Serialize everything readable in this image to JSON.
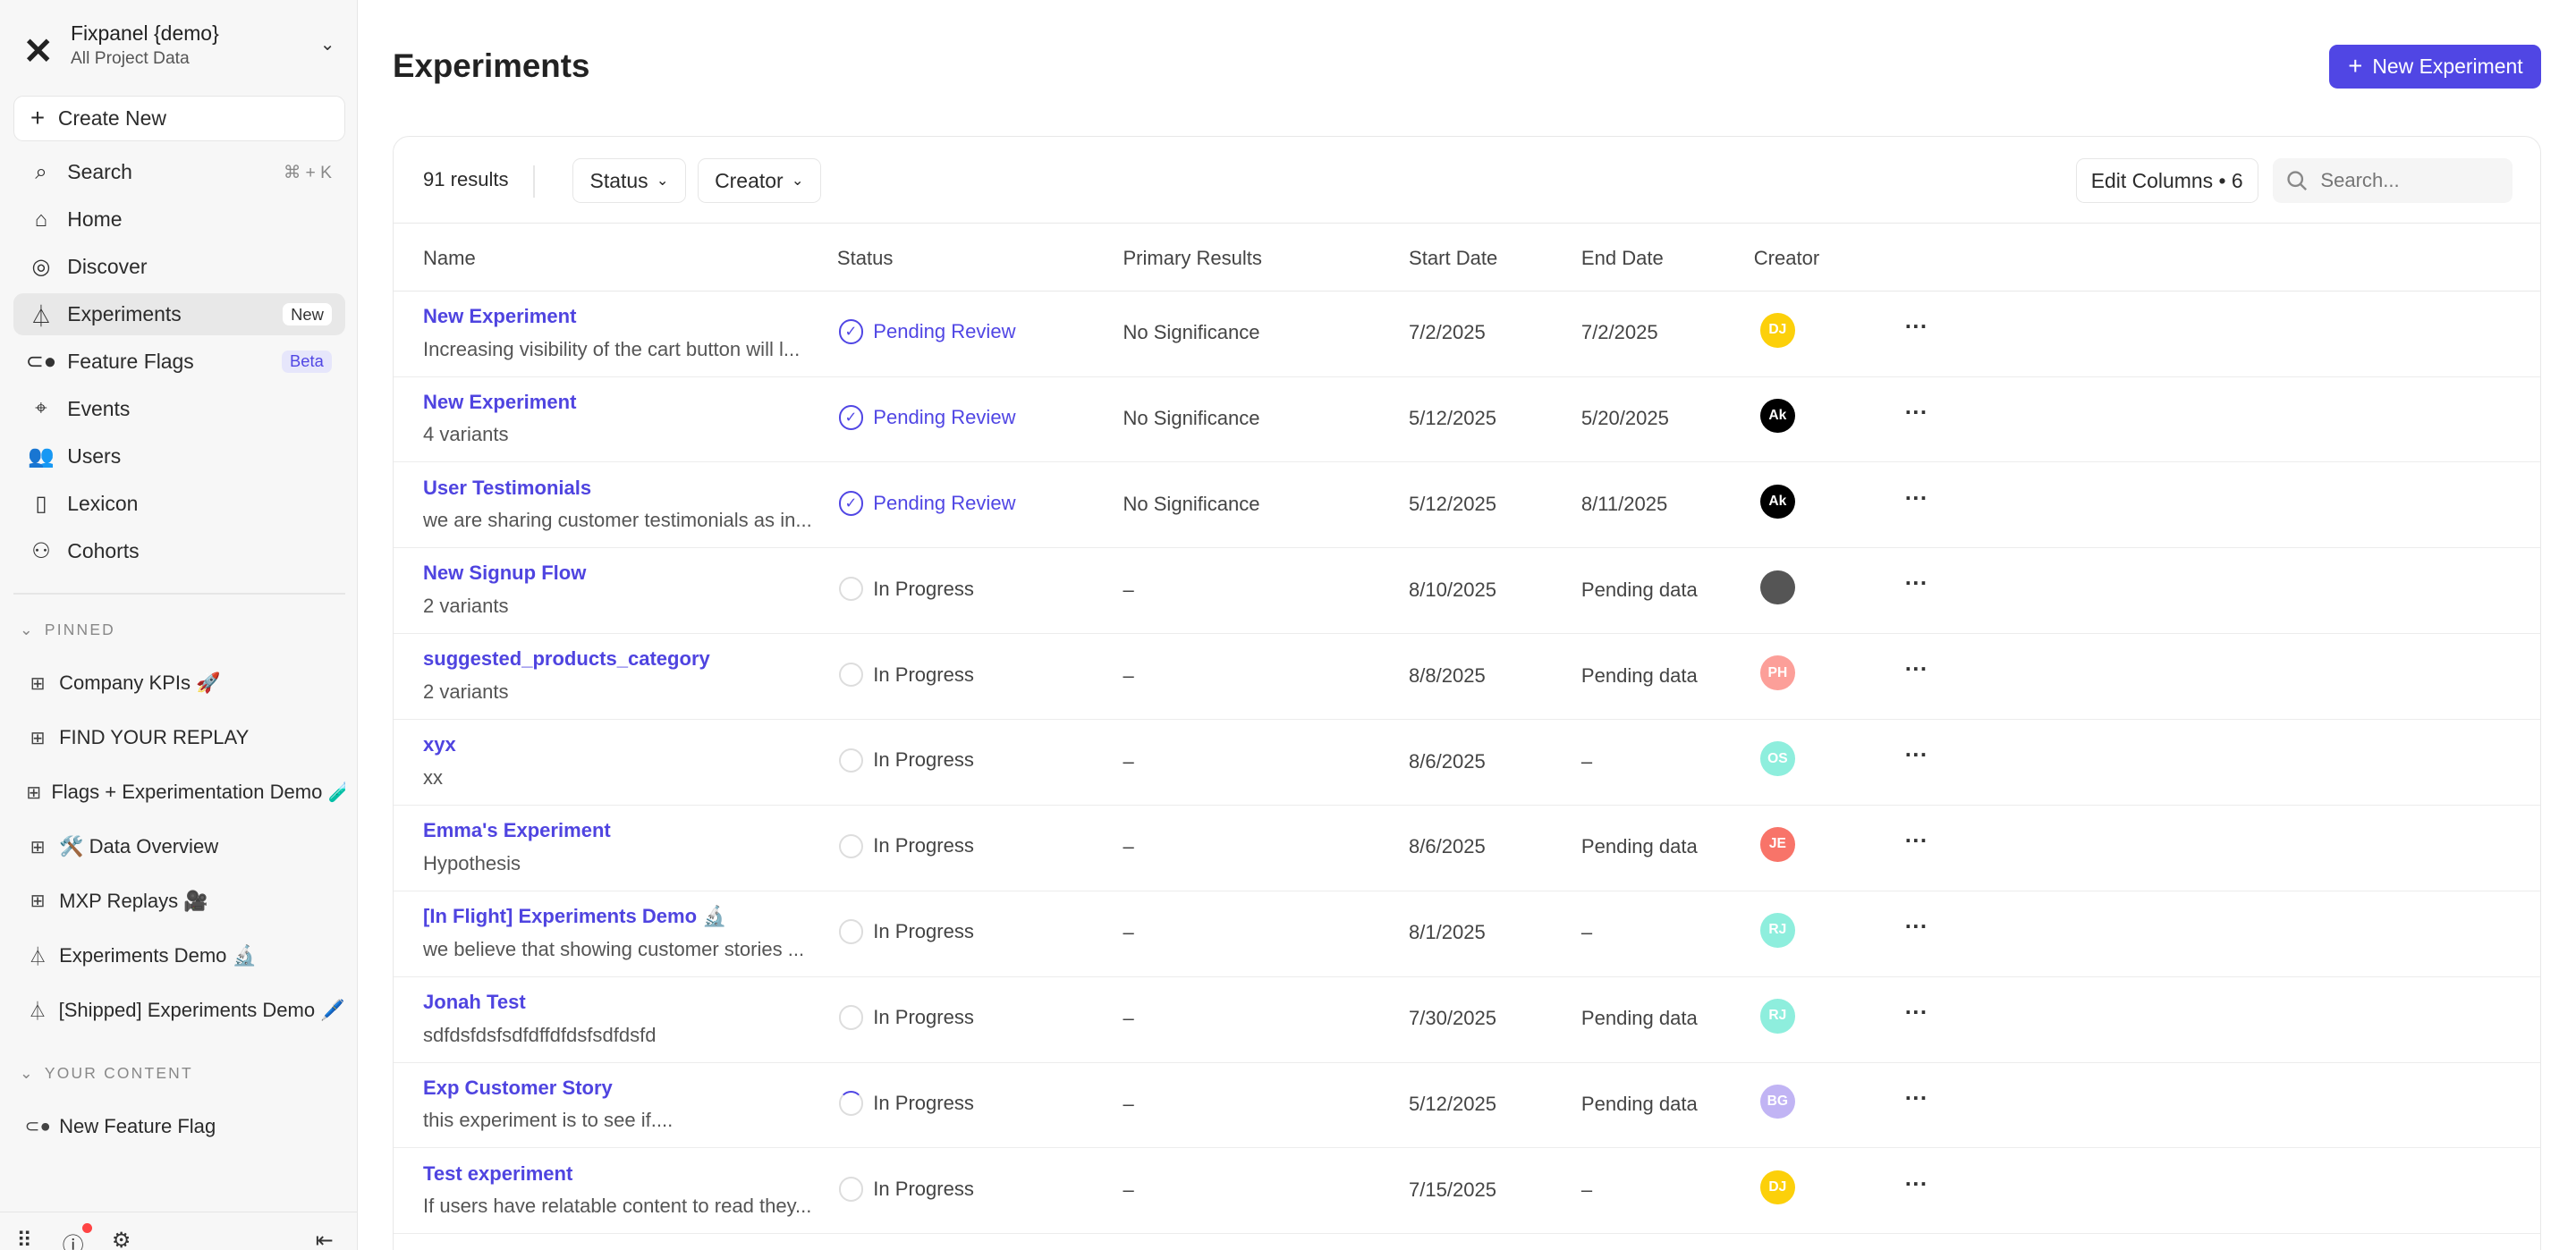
{
  "project": {
    "name": "Fixpanel {demo}",
    "subtitle": "All Project Data"
  },
  "sidebar": {
    "create_new": "Create New",
    "nav": [
      {
        "label": "Search",
        "icon": "search-icon",
        "shortcut": "⌘ + K"
      },
      {
        "label": "Home",
        "icon": "home-icon"
      },
      {
        "label": "Discover",
        "icon": "compass-icon"
      },
      {
        "label": "Experiments",
        "icon": "flask-icon",
        "badge": "New",
        "active": true
      },
      {
        "label": "Feature Flags",
        "icon": "toggle-icon",
        "badge": "Beta"
      },
      {
        "label": "Events",
        "icon": "cursor-click-icon"
      },
      {
        "label": "Users",
        "icon": "users-icon"
      },
      {
        "label": "Lexicon",
        "icon": "book-icon"
      },
      {
        "label": "Cohorts",
        "icon": "cohorts-icon"
      }
    ],
    "pinned_label": "PINNED",
    "pinned": [
      {
        "label": "Company KPIs 🚀",
        "icon": "board-icon"
      },
      {
        "label": "FIND YOUR REPLAY",
        "icon": "board-icon"
      },
      {
        "label": "Flags + Experimentation Demo 🧪",
        "icon": "board-icon"
      },
      {
        "label": "🛠️ Data Overview",
        "icon": "board-icon"
      },
      {
        "label": "MXP Replays 🎥",
        "icon": "board-icon"
      },
      {
        "label": "Experiments Demo 🔬",
        "icon": "flask-icon"
      },
      {
        "label": "[Shipped] Experiments Demo 🖊️",
        "icon": "flask-icon"
      }
    ],
    "your_content_label": "YOUR CONTENT",
    "your_content": [
      {
        "label": "New Feature Flag",
        "icon": "toggle-icon"
      }
    ]
  },
  "page": {
    "title": "Experiments",
    "new_button": "New Experiment"
  },
  "toolbar": {
    "results": "91 results",
    "status_filter": "Status",
    "creator_filter": "Creator",
    "edit_columns": "Edit Columns • 6",
    "search_placeholder": "Search..."
  },
  "table": {
    "columns": [
      "Name",
      "Status",
      "Primary Results",
      "Start Date",
      "End Date",
      "Creator"
    ],
    "rows": [
      {
        "name": "New Experiment",
        "desc": "Increasing visibility of the cart button will l...",
        "status": "Pending Review",
        "status_type": "pending",
        "primary": "No Significance",
        "start": "7/2/2025",
        "end": "7/2/2025",
        "creator": "DJ",
        "creator_color": "#fcd00a"
      },
      {
        "name": "New Experiment",
        "desc": "4 variants",
        "status": "Pending Review",
        "status_type": "pending",
        "primary": "No Significance",
        "start": "5/12/2025",
        "end": "5/20/2025",
        "creator": "Ak",
        "creator_color": "#000000"
      },
      {
        "name": "User Testimonials",
        "desc": "we are sharing customer testimonials as in...",
        "status": "Pending Review",
        "status_type": "pending",
        "primary": "No Significance",
        "start": "5/12/2025",
        "end": "8/11/2025",
        "creator": "Ak",
        "creator_color": "#000000"
      },
      {
        "name": "New Signup Flow",
        "desc": "2 variants",
        "status": "In Progress",
        "status_type": "progress",
        "primary": "–",
        "start": "8/10/2025",
        "end": "Pending data",
        "creator": "",
        "creator_color": "#555555"
      },
      {
        "name": "suggested_products_category",
        "desc": "2 variants",
        "status": "In Progress",
        "status_type": "progress",
        "primary": "–",
        "start": "8/8/2025",
        "end": "Pending data",
        "creator": "PH",
        "creator_color": "#fc9f99"
      },
      {
        "name": "xyx",
        "desc": "xx",
        "status": "In Progress",
        "status_type": "progress",
        "primary": "–",
        "start": "8/6/2025",
        "end": "–",
        "creator": "OS",
        "creator_color": "#8eeedd"
      },
      {
        "name": "Emma's Experiment",
        "desc": "Hypothesis",
        "status": "In Progress",
        "status_type": "progress",
        "primary": "–",
        "start": "8/6/2025",
        "end": "Pending data",
        "creator": "JE",
        "creator_color": "#f87469"
      },
      {
        "name": "[In Flight] Experiments Demo 🔬",
        "desc": "we believe that showing customer stories ...",
        "status": "In Progress",
        "status_type": "progress",
        "primary": "–",
        "start": "8/1/2025",
        "end": "–",
        "creator": "RJ",
        "creator_color": "#8eeedd"
      },
      {
        "name": "Jonah Test",
        "desc": "sdfdsfdsfsdfdffdfdsfsdfdsfd",
        "status": "In Progress",
        "status_type": "progress",
        "primary": "–",
        "start": "7/30/2025",
        "end": "Pending data",
        "creator": "RJ",
        "creator_color": "#8eeedd"
      },
      {
        "name": "Exp Customer Story",
        "desc": "this experiment is to see if....",
        "status": "In Progress",
        "status_type": "spinning",
        "primary": "–",
        "start": "5/12/2025",
        "end": "Pending data",
        "creator": "BG",
        "creator_color": "#c1b4f4"
      },
      {
        "name": "Test experiment",
        "desc": "If users have relatable content to read they...",
        "status": "In Progress",
        "status_type": "progress",
        "primary": "–",
        "start": "7/15/2025",
        "end": "–",
        "creator": "DJ",
        "creator_color": "#fcd00a"
      }
    ]
  },
  "colors": {
    "accent": "#5046e4",
    "link": "#4f44e0"
  }
}
